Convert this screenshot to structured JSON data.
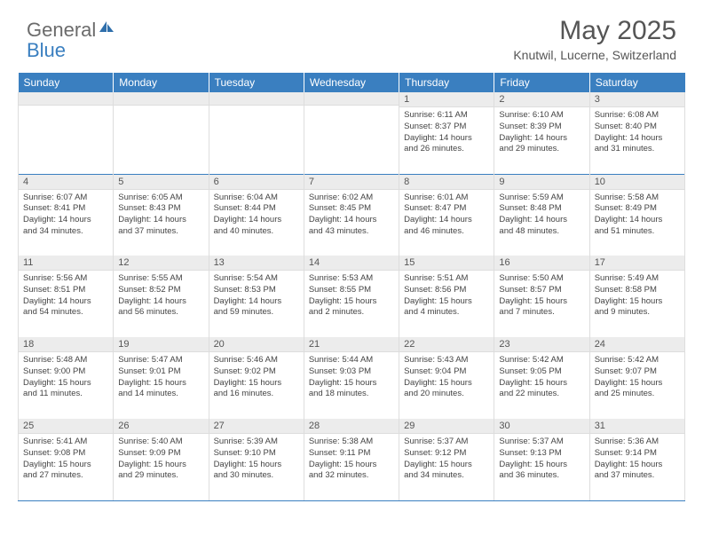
{
  "logo": {
    "part1": "General",
    "part2": "Blue"
  },
  "title": "May 2025",
  "location": "Knutwil, Lucerne, Switzerland",
  "colors": {
    "header_bg": "#3a7fc0",
    "daynum_bg": "#ececec",
    "border": "#dddddd",
    "text": "#444444",
    "logo_gray": "#6b6b6b",
    "logo_blue": "#3a7fc0"
  },
  "weekdays": [
    "Sunday",
    "Monday",
    "Tuesday",
    "Wednesday",
    "Thursday",
    "Friday",
    "Saturday"
  ],
  "weeks": [
    [
      {
        "num": "",
        "lines": []
      },
      {
        "num": "",
        "lines": []
      },
      {
        "num": "",
        "lines": []
      },
      {
        "num": "",
        "lines": []
      },
      {
        "num": "1",
        "lines": [
          "Sunrise: 6:11 AM",
          "Sunset: 8:37 PM",
          "Daylight: 14 hours",
          "and 26 minutes."
        ]
      },
      {
        "num": "2",
        "lines": [
          "Sunrise: 6:10 AM",
          "Sunset: 8:39 PM",
          "Daylight: 14 hours",
          "and 29 minutes."
        ]
      },
      {
        "num": "3",
        "lines": [
          "Sunrise: 6:08 AM",
          "Sunset: 8:40 PM",
          "Daylight: 14 hours",
          "and 31 minutes."
        ]
      }
    ],
    [
      {
        "num": "4",
        "lines": [
          "Sunrise: 6:07 AM",
          "Sunset: 8:41 PM",
          "Daylight: 14 hours",
          "and 34 minutes."
        ]
      },
      {
        "num": "5",
        "lines": [
          "Sunrise: 6:05 AM",
          "Sunset: 8:43 PM",
          "Daylight: 14 hours",
          "and 37 minutes."
        ]
      },
      {
        "num": "6",
        "lines": [
          "Sunrise: 6:04 AM",
          "Sunset: 8:44 PM",
          "Daylight: 14 hours",
          "and 40 minutes."
        ]
      },
      {
        "num": "7",
        "lines": [
          "Sunrise: 6:02 AM",
          "Sunset: 8:45 PM",
          "Daylight: 14 hours",
          "and 43 minutes."
        ]
      },
      {
        "num": "8",
        "lines": [
          "Sunrise: 6:01 AM",
          "Sunset: 8:47 PM",
          "Daylight: 14 hours",
          "and 46 minutes."
        ]
      },
      {
        "num": "9",
        "lines": [
          "Sunrise: 5:59 AM",
          "Sunset: 8:48 PM",
          "Daylight: 14 hours",
          "and 48 minutes."
        ]
      },
      {
        "num": "10",
        "lines": [
          "Sunrise: 5:58 AM",
          "Sunset: 8:49 PM",
          "Daylight: 14 hours",
          "and 51 minutes."
        ]
      }
    ],
    [
      {
        "num": "11",
        "lines": [
          "Sunrise: 5:56 AM",
          "Sunset: 8:51 PM",
          "Daylight: 14 hours",
          "and 54 minutes."
        ]
      },
      {
        "num": "12",
        "lines": [
          "Sunrise: 5:55 AM",
          "Sunset: 8:52 PM",
          "Daylight: 14 hours",
          "and 56 minutes."
        ]
      },
      {
        "num": "13",
        "lines": [
          "Sunrise: 5:54 AM",
          "Sunset: 8:53 PM",
          "Daylight: 14 hours",
          "and 59 minutes."
        ]
      },
      {
        "num": "14",
        "lines": [
          "Sunrise: 5:53 AM",
          "Sunset: 8:55 PM",
          "Daylight: 15 hours",
          "and 2 minutes."
        ]
      },
      {
        "num": "15",
        "lines": [
          "Sunrise: 5:51 AM",
          "Sunset: 8:56 PM",
          "Daylight: 15 hours",
          "and 4 minutes."
        ]
      },
      {
        "num": "16",
        "lines": [
          "Sunrise: 5:50 AM",
          "Sunset: 8:57 PM",
          "Daylight: 15 hours",
          "and 7 minutes."
        ]
      },
      {
        "num": "17",
        "lines": [
          "Sunrise: 5:49 AM",
          "Sunset: 8:58 PM",
          "Daylight: 15 hours",
          "and 9 minutes."
        ]
      }
    ],
    [
      {
        "num": "18",
        "lines": [
          "Sunrise: 5:48 AM",
          "Sunset: 9:00 PM",
          "Daylight: 15 hours",
          "and 11 minutes."
        ]
      },
      {
        "num": "19",
        "lines": [
          "Sunrise: 5:47 AM",
          "Sunset: 9:01 PM",
          "Daylight: 15 hours",
          "and 14 minutes."
        ]
      },
      {
        "num": "20",
        "lines": [
          "Sunrise: 5:46 AM",
          "Sunset: 9:02 PM",
          "Daylight: 15 hours",
          "and 16 minutes."
        ]
      },
      {
        "num": "21",
        "lines": [
          "Sunrise: 5:44 AM",
          "Sunset: 9:03 PM",
          "Daylight: 15 hours",
          "and 18 minutes."
        ]
      },
      {
        "num": "22",
        "lines": [
          "Sunrise: 5:43 AM",
          "Sunset: 9:04 PM",
          "Daylight: 15 hours",
          "and 20 minutes."
        ]
      },
      {
        "num": "23",
        "lines": [
          "Sunrise: 5:42 AM",
          "Sunset: 9:05 PM",
          "Daylight: 15 hours",
          "and 22 minutes."
        ]
      },
      {
        "num": "24",
        "lines": [
          "Sunrise: 5:42 AM",
          "Sunset: 9:07 PM",
          "Daylight: 15 hours",
          "and 25 minutes."
        ]
      }
    ],
    [
      {
        "num": "25",
        "lines": [
          "Sunrise: 5:41 AM",
          "Sunset: 9:08 PM",
          "Daylight: 15 hours",
          "and 27 minutes."
        ]
      },
      {
        "num": "26",
        "lines": [
          "Sunrise: 5:40 AM",
          "Sunset: 9:09 PM",
          "Daylight: 15 hours",
          "and 29 minutes."
        ]
      },
      {
        "num": "27",
        "lines": [
          "Sunrise: 5:39 AM",
          "Sunset: 9:10 PM",
          "Daylight: 15 hours",
          "and 30 minutes."
        ]
      },
      {
        "num": "28",
        "lines": [
          "Sunrise: 5:38 AM",
          "Sunset: 9:11 PM",
          "Daylight: 15 hours",
          "and 32 minutes."
        ]
      },
      {
        "num": "29",
        "lines": [
          "Sunrise: 5:37 AM",
          "Sunset: 9:12 PM",
          "Daylight: 15 hours",
          "and 34 minutes."
        ]
      },
      {
        "num": "30",
        "lines": [
          "Sunrise: 5:37 AM",
          "Sunset: 9:13 PM",
          "Daylight: 15 hours",
          "and 36 minutes."
        ]
      },
      {
        "num": "31",
        "lines": [
          "Sunrise: 5:36 AM",
          "Sunset: 9:14 PM",
          "Daylight: 15 hours",
          "and 37 minutes."
        ]
      }
    ]
  ]
}
